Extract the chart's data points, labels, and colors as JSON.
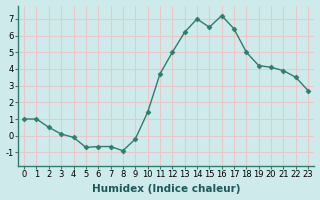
{
  "x": [
    0,
    1,
    2,
    3,
    4,
    5,
    6,
    7,
    8,
    9,
    10,
    11,
    12,
    13,
    14,
    15,
    16,
    17,
    18,
    19,
    20,
    21,
    22,
    23
  ],
  "y": [
    1,
    1,
    0.5,
    0.1,
    -0.1,
    -0.7,
    -0.65,
    -0.65,
    -0.9,
    -0.2,
    1.4,
    3.7,
    5.0,
    6.2,
    7.0,
    6.5,
    7.2,
    6.4,
    5.0,
    4.2,
    4.1,
    3.9,
    3.5,
    2.7
  ],
  "line_color": "#2e7d6e",
  "marker": "D",
  "marker_size": 2.5,
  "bg_color": "#ceeaea",
  "grid_color": "#e8c8c8",
  "xlabel": "Humidex (Indice chaleur)",
  "ylim": [
    -1.8,
    7.8
  ],
  "xlim": [
    -0.5,
    23.5
  ],
  "yticks": [
    -1,
    0,
    1,
    2,
    3,
    4,
    5,
    6,
    7
  ],
  "xticks": [
    0,
    1,
    2,
    3,
    4,
    5,
    6,
    7,
    8,
    9,
    10,
    11,
    12,
    13,
    14,
    15,
    16,
    17,
    18,
    19,
    20,
    21,
    22,
    23
  ],
  "tick_fontsize": 6,
  "xlabel_fontsize": 7.5
}
